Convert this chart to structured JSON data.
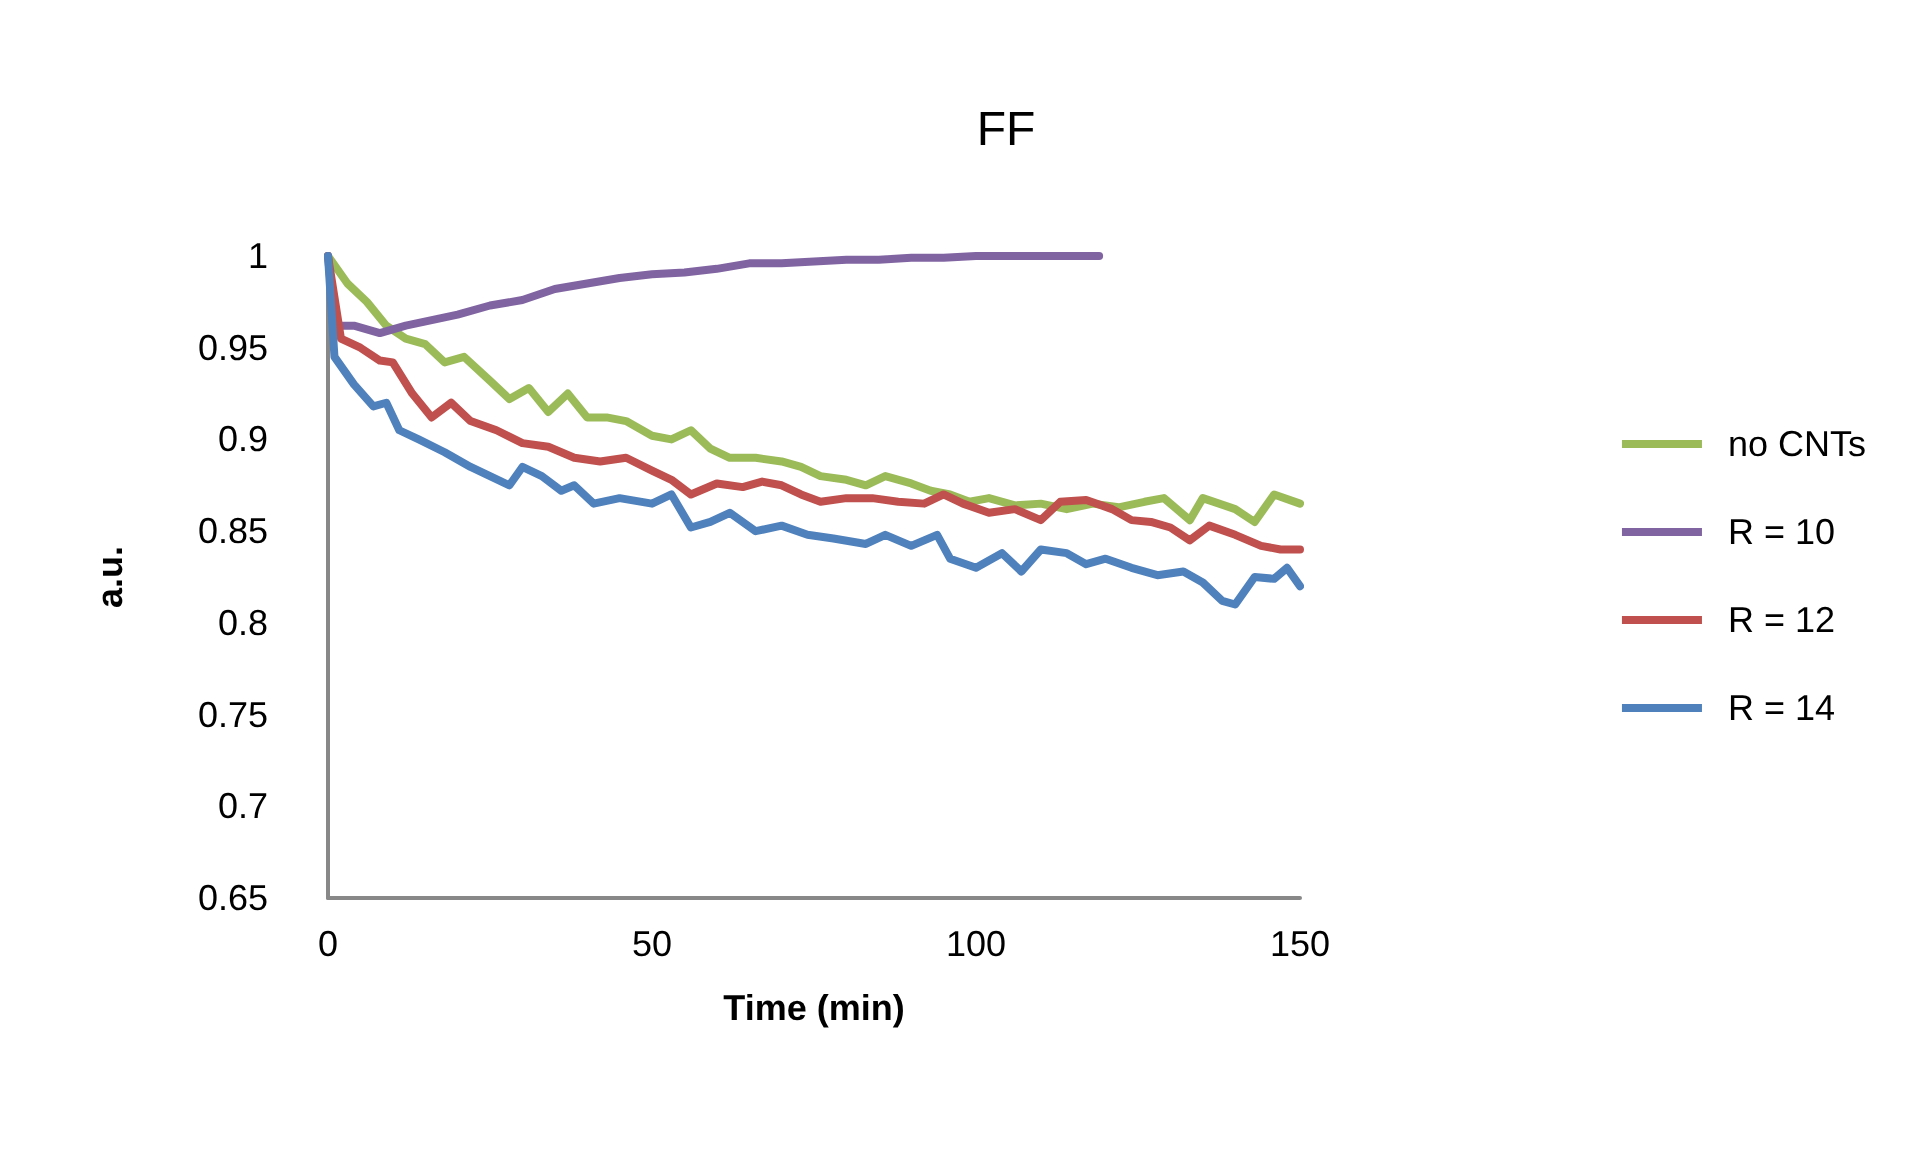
{
  "chart_data": {
    "type": "line",
    "title": "FF",
    "xlabel": "Time (min)",
    "ylabel": "a.u.",
    "xlim": [
      0,
      150
    ],
    "xticks": [
      0,
      50,
      100,
      150
    ],
    "ylim": [
      0.65,
      1
    ],
    "yticks": [
      0.65,
      0.7,
      0.75,
      0.8,
      0.85,
      0.9,
      0.95,
      1
    ],
    "grid": false,
    "legend": "right",
    "marker": "none",
    "line_style": "solid",
    "series": [
      {
        "name": "no CNTs",
        "color": "#9bbb59",
        "x": [
          0,
          3,
          6,
          9,
          12,
          15,
          18,
          21,
          25,
          28,
          31,
          34,
          37,
          40,
          43,
          46,
          50,
          53,
          56,
          59,
          62,
          66,
          70,
          73,
          76,
          80,
          83,
          86,
          90,
          93,
          96,
          99,
          102,
          106,
          110,
          114,
          118,
          122,
          126,
          129,
          133,
          135,
          140,
          143,
          146,
          150
        ],
        "values": [
          1,
          0.985,
          0.975,
          0.962,
          0.955,
          0.952,
          0.942,
          0.945,
          0.932,
          0.922,
          0.928,
          0.915,
          0.925,
          0.912,
          0.912,
          0.91,
          0.902,
          0.9,
          0.905,
          0.895,
          0.89,
          0.89,
          0.888,
          0.885,
          0.88,
          0.878,
          0.875,
          0.88,
          0.876,
          0.872,
          0.87,
          0.866,
          0.868,
          0.864,
          0.865,
          0.862,
          0.865,
          0.863,
          0.866,
          0.868,
          0.856,
          0.868,
          0.862,
          0.855,
          0.87,
          0.865
        ]
      },
      {
        "name": "R = 10",
        "color": "#8064a2",
        "x": [
          0,
          1,
          4,
          8,
          12,
          16,
          20,
          25,
          30,
          35,
          40,
          45,
          50,
          55,
          60,
          65,
          70,
          75,
          80,
          85,
          90,
          95,
          100,
          105,
          110,
          115,
          119
        ],
        "values": [
          1,
          0.962,
          0.962,
          0.958,
          0.962,
          0.965,
          0.968,
          0.973,
          0.976,
          0.982,
          0.985,
          0.988,
          0.99,
          0.991,
          0.993,
          0.996,
          0.996,
          0.997,
          0.998,
          0.998,
          0.999,
          0.999,
          1,
          1,
          1,
          1,
          1
        ]
      },
      {
        "name": "R = 12",
        "color": "#c0504d",
        "x": [
          0,
          2,
          5,
          8,
          10,
          13,
          16,
          19,
          22,
          26,
          30,
          34,
          38,
          42,
          46,
          50,
          53,
          56,
          60,
          64,
          67,
          70,
          73,
          76,
          80,
          84,
          88,
          92,
          95,
          98,
          102,
          106,
          110,
          113,
          117,
          121,
          124,
          127,
          130,
          133,
          136,
          140,
          144,
          147,
          150
        ],
        "values": [
          1,
          0.955,
          0.95,
          0.943,
          0.942,
          0.925,
          0.912,
          0.92,
          0.91,
          0.905,
          0.898,
          0.896,
          0.89,
          0.888,
          0.89,
          0.883,
          0.878,
          0.87,
          0.876,
          0.874,
          0.877,
          0.875,
          0.87,
          0.866,
          0.868,
          0.868,
          0.866,
          0.865,
          0.87,
          0.865,
          0.86,
          0.862,
          0.856,
          0.866,
          0.867,
          0.862,
          0.856,
          0.855,
          0.852,
          0.845,
          0.853,
          0.848,
          0.842,
          0.84,
          0.84
        ]
      },
      {
        "name": "R = 14",
        "color": "#4f81bd",
        "x": [
          0,
          1,
          4,
          7,
          9,
          11,
          14,
          18,
          22,
          25,
          28,
          30,
          33,
          36,
          38,
          41,
          45,
          50,
          53,
          56,
          59,
          62,
          66,
          70,
          74,
          78,
          83,
          86,
          90,
          94,
          96,
          100,
          104,
          107,
          110,
          114,
          117,
          120,
          124,
          128,
          132,
          135,
          138,
          140,
          143,
          146,
          148,
          150
        ],
        "values": [
          1,
          0.945,
          0.93,
          0.918,
          0.92,
          0.905,
          0.9,
          0.893,
          0.885,
          0.88,
          0.875,
          0.885,
          0.88,
          0.872,
          0.875,
          0.865,
          0.868,
          0.865,
          0.87,
          0.852,
          0.855,
          0.86,
          0.85,
          0.853,
          0.848,
          0.846,
          0.843,
          0.848,
          0.842,
          0.848,
          0.835,
          0.83,
          0.838,
          0.828,
          0.84,
          0.838,
          0.832,
          0.835,
          0.83,
          0.826,
          0.828,
          0.822,
          0.812,
          0.81,
          0.825,
          0.824,
          0.83,
          0.82
        ]
      }
    ]
  }
}
